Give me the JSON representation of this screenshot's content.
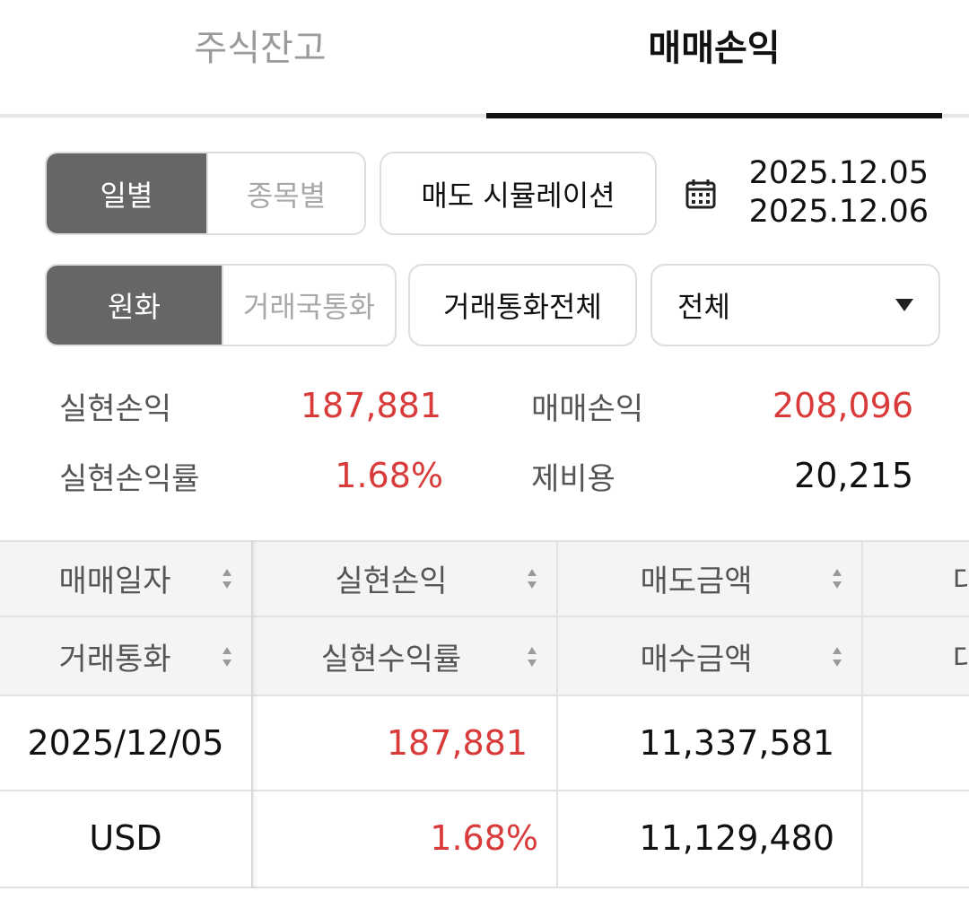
{
  "tabs": [
    {
      "label": "주식잔고",
      "active": false
    },
    {
      "label": "매매손익",
      "active": true
    }
  ],
  "view_toggle": {
    "options": [
      "일별",
      "종목별"
    ],
    "selected": "일별"
  },
  "sell_simulation_label": "매도 시뮬레이션",
  "date_range": {
    "start": "2025.12.05",
    "end": "2025.12.06",
    "icon": "calendar-icon"
  },
  "currency_toggle": {
    "options": [
      "원화",
      "거래국통화"
    ],
    "selected": "원화"
  },
  "currency_filter_label": "거래통화전체",
  "market_select": {
    "value": "전체",
    "icon": "caret-down-icon"
  },
  "summary": {
    "realized_pl": {
      "label": "실현손익",
      "value": "187,881"
    },
    "trading_pl": {
      "label": "매매손익",
      "value": "208,096"
    },
    "realized_pl_rate": {
      "label": "실현손익률",
      "value": "1.68%"
    },
    "fees": {
      "label": "제비용",
      "value": "20,215"
    }
  },
  "table": {
    "header_row1": [
      "매매일자",
      "실현손익",
      "매도금액",
      "대"
    ],
    "header_row2": [
      "거래통화",
      "실현수익률",
      "매수금액",
      "대"
    ],
    "rows": [
      {
        "date": "2025/12/05",
        "realized_pl": "187,881",
        "sell_amount": "11,337,581"
      },
      {
        "currency": "USD",
        "realized_rate": "1.68%",
        "buy_amount": "11,129,480"
      }
    ]
  },
  "colors": {
    "positive": "#d93a3a",
    "active_segment": "#666666",
    "border": "#dddddd",
    "header_bg": "#f4f4f4"
  }
}
